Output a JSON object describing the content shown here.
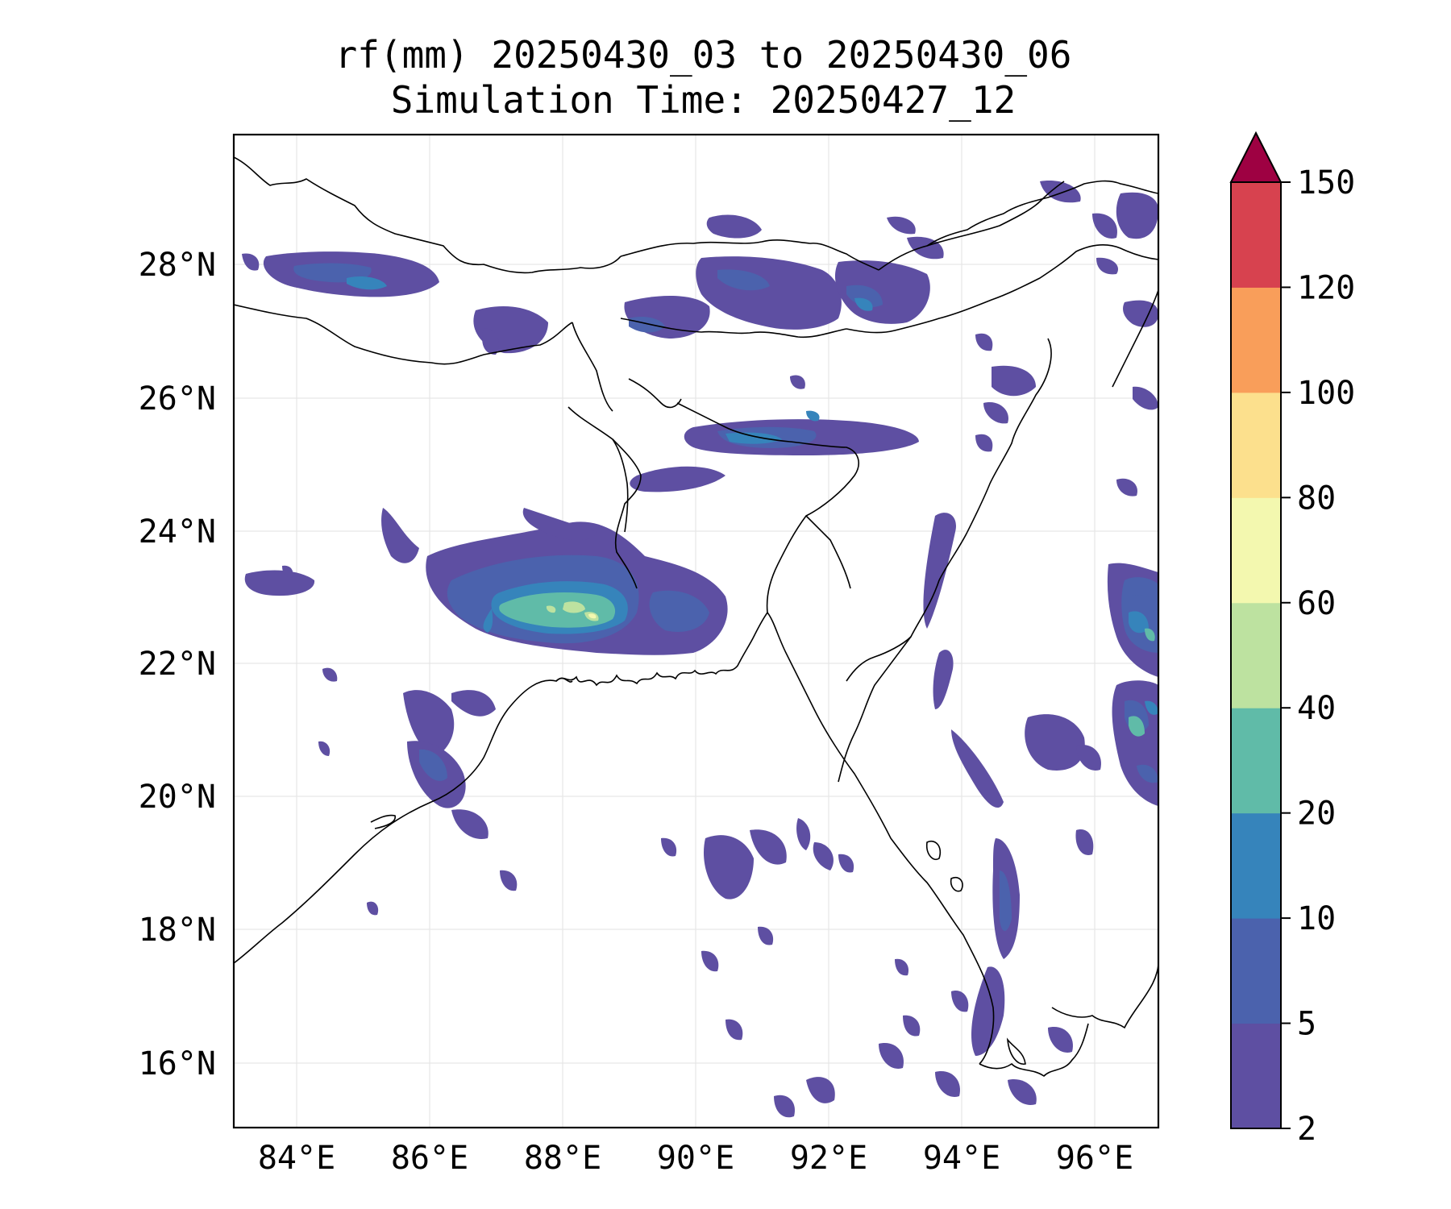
{
  "title_line1": "rf(mm) 20250430_03 to 20250430_06",
  "title_line2": "Simulation Time: 20250427_12",
  "lat_labels": [
    "28°N",
    "26°N",
    "24°N",
    "22°N",
    "20°N",
    "18°N",
    "16°N"
  ],
  "lon_labels": [
    "84°E",
    "86°E",
    "88°E",
    "90°E",
    "92°E",
    "94°E",
    "96°E"
  ],
  "colorbar": {
    "levels": [
      "2",
      "5",
      "10",
      "20",
      "40",
      "60",
      "80",
      "100",
      "120",
      "150"
    ],
    "colors": [
      "#5e4fa2",
      "#4b62ad",
      "#3684bb",
      "#60bba8",
      "#bde2a0",
      "#f3f8af",
      "#fce08d",
      "#f99e5a",
      "#d7424f"
    ],
    "extend_color": "#9e0142"
  },
  "map": {
    "lon_range": [
      83.1,
      97.0
    ],
    "lat_range": [
      15.0,
      30.0
    ],
    "coastline_color": "#000000",
    "gridlines": true
  }
}
